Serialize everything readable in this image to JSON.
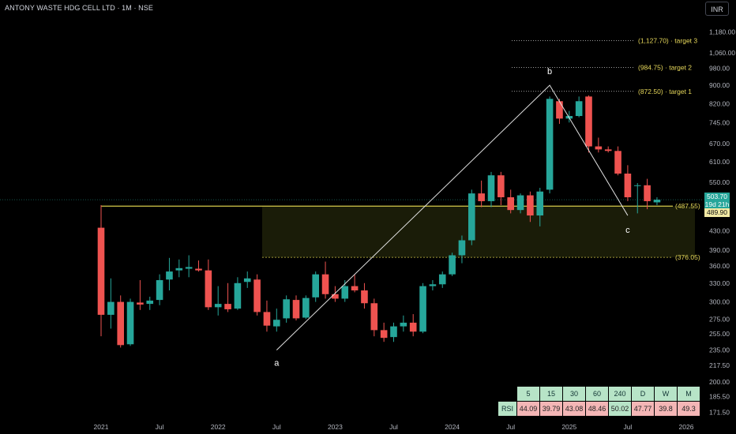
{
  "header": {
    "title": "ANTONY WASTE HDG CELL LTD · 1M · NSE",
    "currency": "INR"
  },
  "colors": {
    "bull": "#26a69a",
    "bear": "#ef5350",
    "level": "#d4c84a",
    "zone": "#1b1e08",
    "target": "#e6d75a"
  },
  "price_tags": {
    "last": "503.70",
    "countdown": "19d 21h",
    "level": "489.90"
  },
  "chart_data": {
    "type": "candlestick",
    "title": "ANTONY WASTE HDG CELL LTD · 1M · NSE",
    "scale": "log",
    "ylim": [
      165,
      1280
    ],
    "y_ticks": [
      1180,
      1060,
      980,
      900,
      820,
      745,
      670,
      610,
      550,
      430,
      390,
      360,
      330,
      300,
      275,
      255,
      235,
      217.5,
      200,
      185.5,
      171.5
    ],
    "x_ticks": [
      {
        "label": "2021",
        "month": "2021-01"
      },
      {
        "label": "Jul",
        "month": "2021-07"
      },
      {
        "label": "2022",
        "month": "2022-01"
      },
      {
        "label": "Jul",
        "month": "2022-07"
      },
      {
        "label": "2023",
        "month": "2023-01"
      },
      {
        "label": "Jul",
        "month": "2023-07"
      },
      {
        "label": "2024",
        "month": "2024-01"
      },
      {
        "label": "Jul",
        "month": "2024-07"
      },
      {
        "label": "2025",
        "month": "2025-01"
      },
      {
        "label": "Jul",
        "month": "2025-07"
      },
      {
        "label": "2026",
        "month": "2026-01"
      }
    ],
    "candles": [
      {
        "month": "2021-01",
        "o": 437,
        "h": 490,
        "l": 252,
        "c": 281
      },
      {
        "month": "2021-02",
        "o": 281,
        "h": 338,
        "l": 262,
        "c": 300
      },
      {
        "month": "2021-03",
        "o": 300,
        "h": 310,
        "l": 238,
        "c": 241
      },
      {
        "month": "2021-04",
        "o": 242,
        "h": 305,
        "l": 240,
        "c": 300
      },
      {
        "month": "2021-05",
        "o": 299,
        "h": 335,
        "l": 288,
        "c": 296
      },
      {
        "month": "2021-06",
        "o": 297,
        "h": 308,
        "l": 288,
        "c": 302
      },
      {
        "month": "2021-07",
        "o": 303,
        "h": 345,
        "l": 295,
        "c": 335
      },
      {
        "month": "2021-08",
        "o": 336,
        "h": 375,
        "l": 318,
        "c": 350
      },
      {
        "month": "2021-09",
        "o": 352,
        "h": 372,
        "l": 340,
        "c": 356
      },
      {
        "month": "2021-10",
        "o": 355,
        "h": 380,
        "l": 340,
        "c": 358
      },
      {
        "month": "2021-11",
        "o": 355,
        "h": 370,
        "l": 350,
        "c": 352
      },
      {
        "month": "2021-12",
        "o": 352,
        "h": 372,
        "l": 288,
        "c": 292
      },
      {
        "month": "2022-01",
        "o": 292,
        "h": 325,
        "l": 280,
        "c": 297
      },
      {
        "month": "2022-02",
        "o": 297,
        "h": 330,
        "l": 285,
        "c": 289
      },
      {
        "month": "2022-03",
        "o": 290,
        "h": 340,
        "l": 288,
        "c": 330
      },
      {
        "month": "2022-04",
        "o": 332,
        "h": 350,
        "l": 322,
        "c": 338
      },
      {
        "month": "2022-05",
        "o": 336,
        "h": 345,
        "l": 280,
        "c": 285
      },
      {
        "month": "2022-06",
        "o": 285,
        "h": 302,
        "l": 258,
        "c": 266
      },
      {
        "month": "2022-07",
        "o": 265,
        "h": 290,
        "l": 258,
        "c": 274
      },
      {
        "month": "2022-08",
        "o": 276,
        "h": 310,
        "l": 270,
        "c": 304
      },
      {
        "month": "2022-09",
        "o": 303,
        "h": 310,
        "l": 273,
        "c": 276
      },
      {
        "month": "2022-10",
        "o": 277,
        "h": 310,
        "l": 275,
        "c": 306
      },
      {
        "month": "2022-11",
        "o": 307,
        "h": 350,
        "l": 300,
        "c": 345
      },
      {
        "month": "2022-12",
        "o": 345,
        "h": 368,
        "l": 305,
        "c": 312
      },
      {
        "month": "2023-01",
        "o": 312,
        "h": 325,
        "l": 300,
        "c": 305
      },
      {
        "month": "2023-02",
        "o": 305,
        "h": 335,
        "l": 300,
        "c": 325
      },
      {
        "month": "2023-03",
        "o": 325,
        "h": 345,
        "l": 315,
        "c": 318
      },
      {
        "month": "2023-04",
        "o": 318,
        "h": 330,
        "l": 290,
        "c": 298
      },
      {
        "month": "2023-05",
        "o": 298,
        "h": 305,
        "l": 252,
        "c": 260
      },
      {
        "month": "2023-06",
        "o": 260,
        "h": 270,
        "l": 245,
        "c": 250
      },
      {
        "month": "2023-07",
        "o": 251,
        "h": 270,
        "l": 245,
        "c": 265
      },
      {
        "month": "2023-08",
        "o": 265,
        "h": 280,
        "l": 258,
        "c": 270
      },
      {
        "month": "2023-09",
        "o": 270,
        "h": 282,
        "l": 252,
        "c": 258
      },
      {
        "month": "2023-10",
        "o": 258,
        "h": 330,
        "l": 256,
        "c": 325
      },
      {
        "month": "2023-11",
        "o": 325,
        "h": 335,
        "l": 318,
        "c": 328
      },
      {
        "month": "2023-12",
        "o": 328,
        "h": 350,
        "l": 322,
        "c": 345
      },
      {
        "month": "2024-01",
        "o": 345,
        "h": 385,
        "l": 342,
        "c": 380
      },
      {
        "month": "2024-02",
        "o": 380,
        "h": 420,
        "l": 365,
        "c": 410
      },
      {
        "month": "2024-03",
        "o": 410,
        "h": 530,
        "l": 400,
        "c": 520
      },
      {
        "month": "2024-04",
        "o": 520,
        "h": 555,
        "l": 485,
        "c": 500
      },
      {
        "month": "2024-05",
        "o": 500,
        "h": 580,
        "l": 485,
        "c": 570
      },
      {
        "month": "2024-06",
        "o": 570,
        "h": 580,
        "l": 490,
        "c": 510
      },
      {
        "month": "2024-07",
        "o": 510,
        "h": 530,
        "l": 470,
        "c": 478
      },
      {
        "month": "2024-08",
        "o": 478,
        "h": 520,
        "l": 470,
        "c": 515
      },
      {
        "month": "2024-09",
        "o": 515,
        "h": 525,
        "l": 450,
        "c": 465
      },
      {
        "month": "2024-10",
        "o": 465,
        "h": 535,
        "l": 440,
        "c": 525
      },
      {
        "month": "2024-11",
        "o": 530,
        "h": 850,
        "l": 520,
        "c": 840
      },
      {
        "month": "2024-12",
        "o": 830,
        "h": 840,
        "l": 740,
        "c": 760
      },
      {
        "month": "2025-01",
        "o": 760,
        "h": 790,
        "l": 745,
        "c": 770
      },
      {
        "month": "2025-02",
        "o": 770,
        "h": 850,
        "l": 765,
        "c": 830
      },
      {
        "month": "2025-03",
        "o": 850,
        "h": 855,
        "l": 640,
        "c": 660
      },
      {
        "month": "2025-04",
        "o": 660,
        "h": 690,
        "l": 640,
        "c": 650
      },
      {
        "month": "2025-05",
        "o": 650,
        "h": 660,
        "l": 640,
        "c": 645
      },
      {
        "month": "2025-06",
        "o": 645,
        "h": 660,
        "l": 570,
        "c": 575
      },
      {
        "month": "2025-07",
        "o": 575,
        "h": 600,
        "l": 500,
        "c": 510
      },
      {
        "month": "2025-08",
        "o": 540,
        "h": 548,
        "l": 470,
        "c": 542
      },
      {
        "month": "2025-09",
        "o": 542,
        "h": 560,
        "l": 480,
        "c": 500
      },
      {
        "month": "2025-10",
        "o": 497,
        "h": 510,
        "l": 490,
        "c": 503.7
      }
    ],
    "pattern": {
      "points": [
        {
          "label": "a",
          "month": "2022-07",
          "price": 235
        },
        {
          "label": "b",
          "month": "2024-11",
          "price": 900
        },
        {
          "label": "c",
          "month": "2025-07",
          "price": 465
        }
      ]
    },
    "levels": [
      {
        "label": "(487.55)",
        "price": 487.55,
        "from_month": "2021-01"
      },
      {
        "label": "(376.05)",
        "price": 376.05,
        "from_month": "2022-06"
      }
    ],
    "targets": [
      {
        "label": "(1,127.70) · target 3",
        "price": 1127.7
      },
      {
        "label": "(984.75) · target 2",
        "price": 984.75
      },
      {
        "label": "(872.50) · target 1",
        "price": 872.5
      }
    ],
    "rsi_table": {
      "row_label": "RSI",
      "timeframes": [
        "5",
        "15",
        "30",
        "60",
        "240",
        "D",
        "W",
        "M"
      ],
      "values": [
        "44.09",
        "39.79",
        "43.08",
        "48.46",
        "50.02",
        "47.77",
        "39.8",
        "49.3"
      ],
      "cell_colors": [
        "#f4b6b6",
        "#f4b6b6",
        "#f4b6b6",
        "#f4b6b6",
        "#b7e4c7",
        "#f4b6b6",
        "#f4b6b6",
        "#f4b6b6"
      ]
    },
    "last_price": 503.7,
    "level_price": 489.9
  }
}
